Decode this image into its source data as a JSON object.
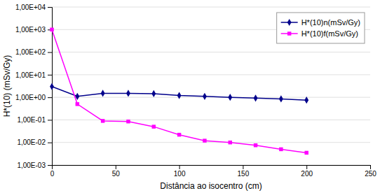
{
  "chart_data": {
    "type": "line",
    "xlabel": "Distância ao isocentro (cm)",
    "ylabel": "H*(10) (mSv/Gy)",
    "x": [
      0,
      20,
      40,
      60,
      80,
      100,
      120,
      140,
      160,
      180,
      200
    ],
    "series": [
      {
        "name": "H*(10)n(mSv/Gy)",
        "color": "#00008B",
        "marker": "diamond",
        "values": [
          3.0,
          1.1,
          1.5,
          1.5,
          1.45,
          1.2,
          1.1,
          1.0,
          0.92,
          0.85,
          0.75
        ]
      },
      {
        "name": "H*(10)f(mSv/Gy)",
        "color": "#FF00FF",
        "marker": "square",
        "values": [
          1000,
          0.5,
          0.09,
          0.085,
          0.05,
          0.022,
          0.012,
          0.01,
          0.0075,
          0.005,
          0.0035
        ]
      }
    ],
    "xlim": [
      0,
      250
    ],
    "xticks": [
      0,
      50,
      100,
      150,
      200,
      250
    ],
    "ylim": [
      0.001,
      10000
    ],
    "yticks": [
      {
        "value": 10000,
        "label": "1,00E+04"
      },
      {
        "value": 1000,
        "label": "1,00E+03"
      },
      {
        "value": 100,
        "label": "1,00E+02"
      },
      {
        "value": 10,
        "label": "1,00E+01"
      },
      {
        "value": 1,
        "label": "1,00E+00"
      },
      {
        "value": 0.1,
        "label": "1,00E-01"
      },
      {
        "value": 0.01,
        "label": "1,00E-02"
      },
      {
        "value": 0.001,
        "label": "1,00E-03"
      }
    ],
    "log": "y",
    "grid": true,
    "legend": "upper-right"
  }
}
